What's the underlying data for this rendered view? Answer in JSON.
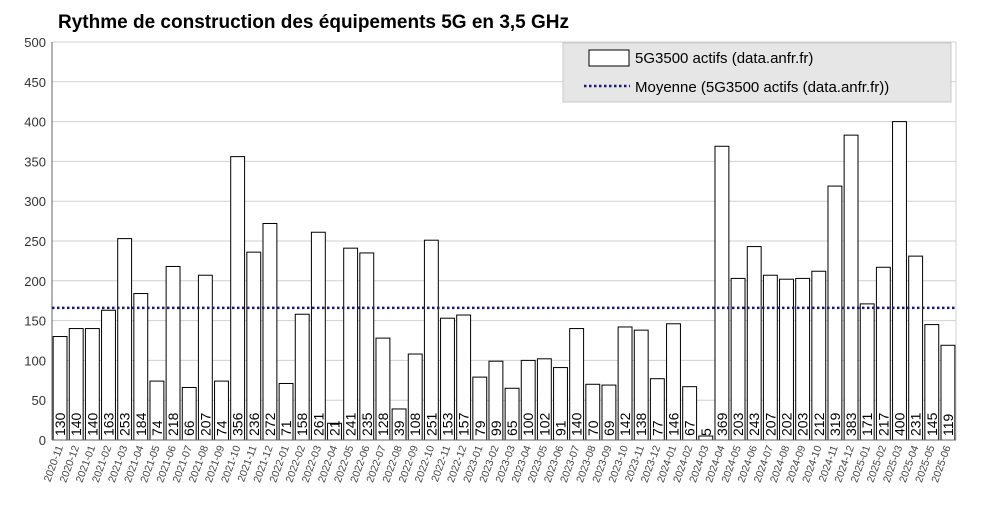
{
  "chart_data": {
    "type": "bar",
    "title": "Rythme de construction des équipements 5G en 3,5 GHz",
    "xlabel": "",
    "ylabel": "",
    "ylim": [
      0,
      500
    ],
    "yticks": [
      0,
      50,
      100,
      150,
      200,
      250,
      300,
      350,
      400,
      450,
      500
    ],
    "grid": true,
    "legend_position": "top-right",
    "categories": [
      "2020-11",
      "2020-12",
      "2021-01",
      "2021-02",
      "2021-03",
      "2021-04",
      "2021-05",
      "2021-06",
      "2021-07",
      "2021-08",
      "2021-09",
      "2021-10",
      "2021-11",
      "2021-12",
      "2022-01",
      "2022-02",
      "2022-03",
      "2022-04",
      "2022-05",
      "2022-06",
      "2022-07",
      "2022-08",
      "2022-09",
      "2022-10",
      "2022-11",
      "2022-12",
      "2023-01",
      "2023-02",
      "2023-03",
      "2023-04",
      "2023-05",
      "2023-06",
      "2023-07",
      "2023-08",
      "2023-09",
      "2023-10",
      "2023-11",
      "2023-12",
      "2024-01",
      "2024-02",
      "2024-03",
      "2024-04",
      "2024-05",
      "2024-06",
      "2024-07",
      "2024-08",
      "2024-09",
      "2024-10",
      "2024-11",
      "2024-12",
      "2025-01",
      "2025-02",
      "2025-03",
      "2025-04",
      "2025-05",
      "2025-06"
    ],
    "series": [
      {
        "name": "5G3500 actifs (data.anfr.fr)",
        "values": [
          130,
          140,
          140,
          163,
          253,
          184,
          74,
          218,
          66,
          207,
          74,
          356,
          236,
          272,
          71,
          158,
          261,
          21,
          241,
          235,
          128,
          39,
          108,
          251,
          153,
          157,
          79,
          99,
          65,
          100,
          102,
          91,
          140,
          70,
          69,
          142,
          138,
          77,
          146,
          67,
          5,
          369,
          203,
          243,
          207,
          202,
          203,
          212,
          319,
          383,
          171,
          217,
          400,
          231,
          145,
          119
        ]
      }
    ],
    "average": {
      "name": "Moyenne (5G3500 actifs (data.anfr.fr))",
      "value": 166,
      "color": "#1a1a6e"
    }
  }
}
